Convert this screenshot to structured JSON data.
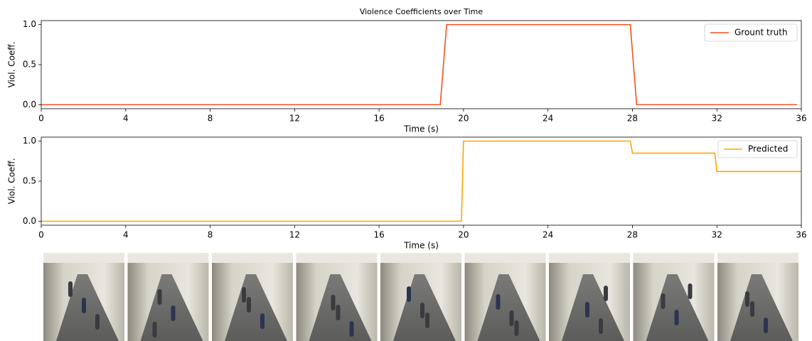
{
  "chart_data": [
    {
      "type": "line",
      "title": "Violence Coefficients over Time",
      "xlabel": "Time (s)",
      "ylabel": "Viol. Coeff.",
      "xlim": [
        0,
        36
      ],
      "xticks": [
        0,
        4,
        8,
        12,
        16,
        20,
        24,
        28,
        32,
        36
      ],
      "ylim": [
        -0.05,
        1.05
      ],
      "yticks": [
        {
          "value": 0,
          "label": "0.0"
        },
        {
          "value": 0.5,
          "label": "0.5"
        },
        {
          "value": 1,
          "label": "1.0"
        }
      ],
      "legend": "upper right",
      "series": [
        {
          "name": "Grount truth",
          "color": "#f4511e",
          "x": [
            0,
            18.9,
            19.2,
            27.9,
            28.2,
            35.8
          ],
          "values": [
            0,
            0,
            1,
            1,
            0,
            0
          ]
        }
      ]
    },
    {
      "type": "line",
      "xlabel": "Time (s)",
      "ylabel": "Viol. Coeff.",
      "xlim": [
        0,
        36
      ],
      "xticks": [
        0,
        4,
        8,
        12,
        16,
        20,
        24,
        28,
        32,
        36
      ],
      "ylim": [
        -0.05,
        1.05
      ],
      "yticks": [
        {
          "value": 0,
          "label": "0.0"
        },
        {
          "value": 0.5,
          "label": "0.5"
        },
        {
          "value": 1,
          "label": "1.0"
        }
      ],
      "legend": "upper right",
      "series": [
        {
          "name": "Predicted",
          "color": "#ffa500",
          "x": [
            0,
            19.9,
            20.0,
            27.9,
            28.0,
            31.9,
            32.0,
            36
          ],
          "values": [
            0,
            0,
            1,
            1,
            0.85,
            0.85,
            0.62,
            0.62
          ]
        }
      ]
    }
  ]
}
